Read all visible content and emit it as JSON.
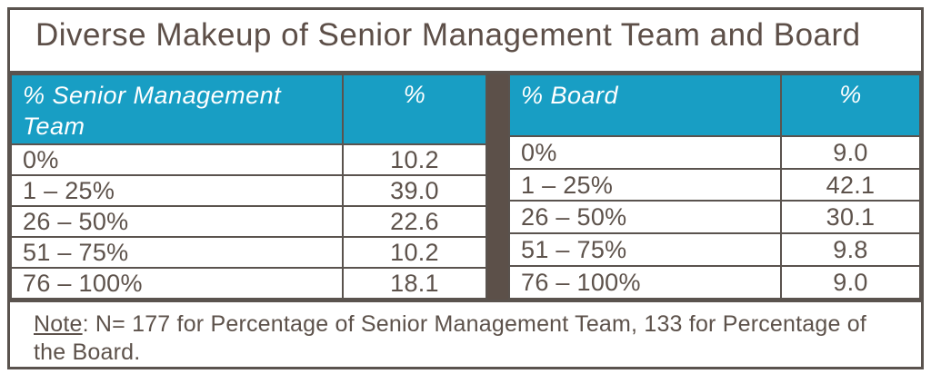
{
  "title": "Diverse Makeup of Senior Management Team and Board",
  "note": {
    "label": "Note",
    "rest": ": N= 177 for Percentage of Senior Management Team, 133 for Percentage of the Board."
  },
  "colors": {
    "header_bg": "#189EC4",
    "header_text": "#FFFFFF",
    "border": "#5A534E",
    "divider": "#5C5049",
    "text": "#5D524B",
    "title_text": "#5D4F48"
  },
  "chart_data": {
    "type": "table",
    "title": "Diverse Makeup of Senior Management Team and Board",
    "note": "Note: N= 177 for Percentage of Senior Management Team, 133 for Percentage of the Board.",
    "tables": [
      {
        "name": "senior_management_team",
        "headers": [
          "% Senior Management Team",
          "%"
        ],
        "rows": [
          [
            "0%",
            "10.2"
          ],
          [
            "1 – 25%",
            "39.0"
          ],
          [
            "26 – 50%",
            "22.6"
          ],
          [
            "51 – 75%",
            "10.2"
          ],
          [
            "76 – 100%",
            "18.1"
          ]
        ]
      },
      {
        "name": "board",
        "headers": [
          "% Board",
          "%"
        ],
        "rows": [
          [
            "0%",
            "9.0"
          ],
          [
            "1 – 25%",
            "42.1"
          ],
          [
            "26 – 50%",
            "30.1"
          ],
          [
            "51 – 75%",
            "9.8"
          ],
          [
            "76 – 100%",
            "9.0"
          ]
        ]
      }
    ]
  }
}
